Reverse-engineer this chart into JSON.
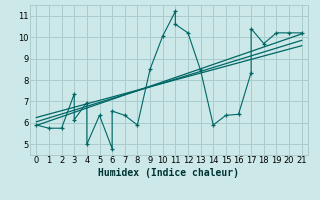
{
  "bg_color": "#cce8e8",
  "grid_color": "#aacccc",
  "line_color": "#006666",
  "xlabel": "Humidex (Indice chaleur)",
  "xlim": [
    -0.5,
    21.5
  ],
  "ylim": [
    4.5,
    11.5
  ],
  "yticks": [
    5,
    6,
    7,
    8,
    9,
    10,
    11
  ],
  "xticks": [
    0,
    1,
    2,
    3,
    4,
    5,
    6,
    7,
    8,
    9,
    10,
    11,
    12,
    13,
    14,
    15,
    16,
    17,
    18,
    19,
    20,
    21
  ],
  "scatter_x": [
    0,
    1,
    2,
    3,
    3,
    4,
    4,
    5,
    6,
    6,
    7,
    8,
    9,
    10,
    11,
    11,
    12,
    13,
    14,
    15,
    16,
    17,
    17,
    18,
    19,
    20,
    21
  ],
  "scatter_y": [
    5.9,
    5.75,
    5.75,
    7.35,
    6.15,
    6.95,
    5.0,
    6.35,
    4.8,
    6.55,
    6.35,
    5.9,
    8.5,
    10.05,
    11.2,
    10.6,
    10.2,
    8.45,
    5.9,
    6.35,
    6.4,
    8.35,
    10.4,
    9.7,
    10.2,
    10.2,
    10.2
  ],
  "reg_lines": [
    {
      "x0": 0,
      "y0": 5.88,
      "x1": 21,
      "y1": 10.15
    },
    {
      "x0": 0,
      "y0": 6.05,
      "x1": 21,
      "y1": 9.85
    },
    {
      "x0": 0,
      "y0": 6.25,
      "x1": 21,
      "y1": 9.6
    }
  ],
  "xlabel_fontsize": 7,
  "tick_fontsize": 6
}
